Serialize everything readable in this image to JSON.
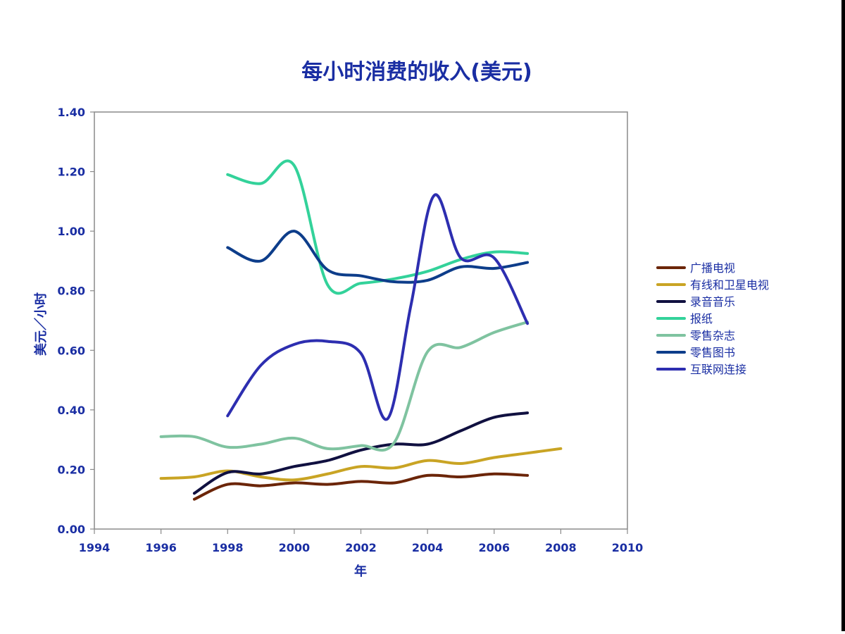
{
  "chart_data": {
    "type": "line",
    "title": "每小时消费的收入(美元)",
    "xlabel": "年",
    "ylabel": "美元／小时",
    "xlim": [
      1994,
      2010
    ],
    "ylim": [
      0,
      1.4
    ],
    "x_ticks": [
      "1994",
      "1996",
      "1998",
      "2000",
      "2002",
      "2004",
      "2006",
      "2008",
      "2010"
    ],
    "y_ticks": [
      "0.00",
      "0.20",
      "0.40",
      "0.60",
      "0.80",
      "1.00",
      "1.20",
      "1.40"
    ],
    "grid": false,
    "legend_position": "right",
    "series": [
      {
        "name": "广播电视",
        "color": "#6b2508",
        "points": [
          [
            1997,
            0.1
          ],
          [
            1998,
            0.15
          ],
          [
            1999,
            0.145
          ],
          [
            2000,
            0.155
          ],
          [
            2001,
            0.15
          ],
          [
            2002,
            0.16
          ],
          [
            2003,
            0.155
          ],
          [
            2004,
            0.18
          ],
          [
            2005,
            0.175
          ],
          [
            2006,
            0.185
          ],
          [
            2007,
            0.18
          ]
        ]
      },
      {
        "name": "有线和卫星电视",
        "color": "#c9a424",
        "points": [
          [
            1996,
            0.17
          ],
          [
            1997,
            0.175
          ],
          [
            1998,
            0.195
          ],
          [
            1999,
            0.175
          ],
          [
            2000,
            0.165
          ],
          [
            2001,
            0.185
          ],
          [
            2002,
            0.21
          ],
          [
            2003,
            0.205
          ],
          [
            2004,
            0.23
          ],
          [
            2005,
            0.22
          ],
          [
            2006,
            0.24
          ],
          [
            2007,
            0.255
          ],
          [
            2008,
            0.27
          ]
        ]
      },
      {
        "name": "录音音乐",
        "color": "#101040",
        "points": [
          [
            1997,
            0.12
          ],
          [
            1998,
            0.19
          ],
          [
            1999,
            0.185
          ],
          [
            2000,
            0.21
          ],
          [
            2001,
            0.23
          ],
          [
            2002,
            0.265
          ],
          [
            2003,
            0.285
          ],
          [
            2004,
            0.285
          ],
          [
            2005,
            0.33
          ],
          [
            2006,
            0.375
          ],
          [
            2007,
            0.39
          ]
        ]
      },
      {
        "name": "报纸",
        "color": "#33d29a",
        "points": [
          [
            1998,
            1.19
          ],
          [
            1999,
            1.16
          ],
          [
            2000,
            1.22
          ],
          [
            2001,
            0.82
          ],
          [
            2002,
            0.825
          ],
          [
            2003,
            0.84
          ],
          [
            2004,
            0.865
          ],
          [
            2005,
            0.905
          ],
          [
            2006,
            0.93
          ],
          [
            2007,
            0.925
          ]
        ]
      },
      {
        "name": "零售杂志",
        "color": "#7fc3a0",
        "points": [
          [
            1996,
            0.31
          ],
          [
            1997,
            0.31
          ],
          [
            1998,
            0.275
          ],
          [
            1999,
            0.285
          ],
          [
            2000,
            0.305
          ],
          [
            2001,
            0.27
          ],
          [
            2002,
            0.28
          ],
          [
            2003,
            0.29
          ],
          [
            2004,
            0.595
          ],
          [
            2005,
            0.61
          ],
          [
            2006,
            0.66
          ],
          [
            2007,
            0.695
          ]
        ]
      },
      {
        "name": "零售图书",
        "color": "#0d3d8a",
        "points": [
          [
            1998,
            0.945
          ],
          [
            1999,
            0.9
          ],
          [
            2000,
            1.0
          ],
          [
            2001,
            0.87
          ],
          [
            2002,
            0.85
          ],
          [
            2003,
            0.83
          ],
          [
            2004,
            0.835
          ],
          [
            2005,
            0.88
          ],
          [
            2006,
            0.875
          ],
          [
            2007,
            0.895
          ]
        ]
      },
      {
        "name": "互联网连接",
        "color": "#2d2eb0",
        "points": [
          [
            1998,
            0.38
          ],
          [
            1999,
            0.55
          ],
          [
            2000,
            0.62
          ],
          [
            2001,
            0.63
          ],
          [
            2002,
            0.59
          ],
          [
            2002.8,
            0.37
          ],
          [
            2003.5,
            0.75
          ],
          [
            2004.2,
            1.12
          ],
          [
            2005,
            0.91
          ],
          [
            2006,
            0.91
          ],
          [
            2007,
            0.69
          ]
        ]
      }
    ]
  }
}
